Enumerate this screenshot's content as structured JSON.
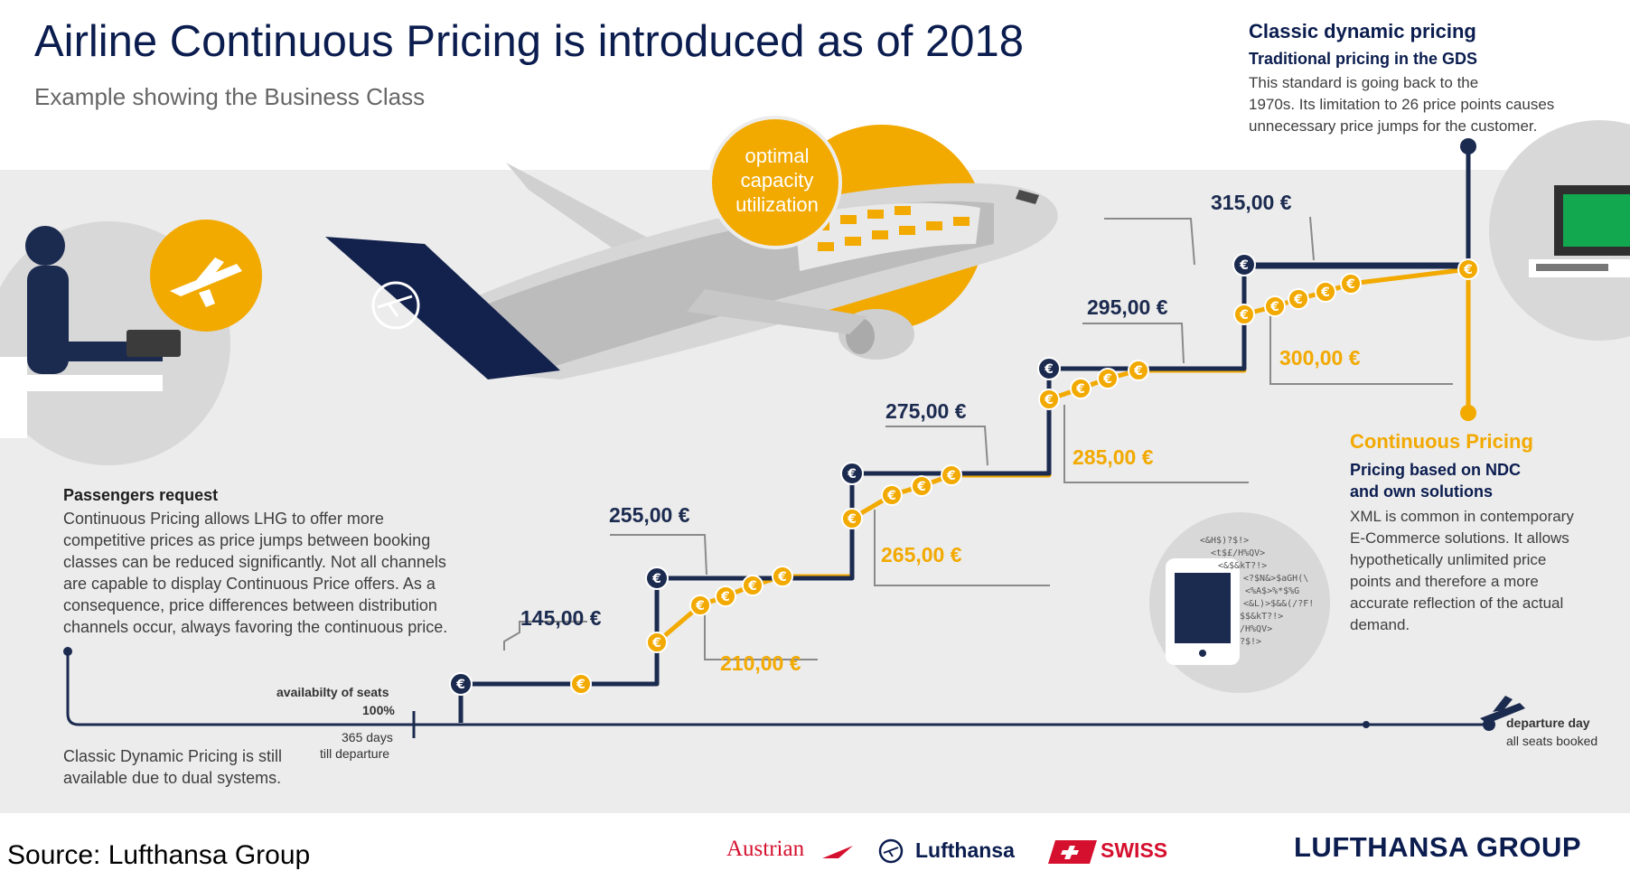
{
  "header": {
    "title": "Airline Continuous Pricing is introduced as of 2018",
    "subtitle": "Example showing the Business Class"
  },
  "classic": {
    "title": "Classic dynamic pricing",
    "subtitle": "Traditional pricing in the GDS",
    "body_line1": "This standard is going back to the",
    "body_line2": "1970s. Its limitation to 26 price points causes",
    "body_line3": "unnecessary price jumps for the customer."
  },
  "continuous": {
    "title": "Continuous Pricing",
    "subtitle_line1": "Pricing based on NDC",
    "subtitle_line2": "and own solutions",
    "body_line1": "XML is common in contemporary",
    "body_line2": "E-Commerce solutions. It allows",
    "body_line3": "hypothetically unlimited price",
    "body_line4": "points and therefore a more",
    "body_line5": "accurate reflection of the actual",
    "body_line6": "demand."
  },
  "passengers": {
    "title": "Passengers request",
    "body_line1": "Continuous Pricing allows LHG to offer more",
    "body_line2": "competitive prices as price jumps between booking",
    "body_line3": "classes can be reduced significantly. Not all channels",
    "body_line4": "are capable to display Continuous Price offers. As a",
    "body_line5": "consequence, price differences between distribution",
    "body_line6": "channels occur, always favoring the continuous price."
  },
  "dual_systems": {
    "line1": "Classic Dynamic Pricing is still",
    "line2": "available due to dual systems."
  },
  "circle_label": {
    "line1": "optimal",
    "line2": "capacity",
    "line3": "utilization"
  },
  "timeline": {
    "availability_line1": "availabilty of seats",
    "availability_line2": "100%",
    "days_line1": "365 days",
    "days_line2": "till departure",
    "departure_line1": "departure day",
    "departure_line2": "all seats booked"
  },
  "code_snippet": {
    "l1": "<&H$)?$!>",
    "l2": "<t$£/H%QV>",
    "l3": "<&$&kT?!>",
    "l4": "<?$N&>$aGH(\\",
    "l5": "<%A$>%*$%G",
    "l6": "<&L)>$&&(/?F!",
    "l7": "$$&kT?!>",
    "l8": "/H%QV>",
    "l9": "?$!>"
  },
  "chart_data": {
    "type": "line",
    "x_label": "",
    "y_unit": "€",
    "classic_prices": [
      "145,00 €",
      "255,00 €",
      "275,00 €",
      "295,00 €",
      "315,00 €"
    ],
    "continuous_prices": [
      "210,00 €",
      "265,00 €",
      "285,00 €",
      "300,00 €"
    ],
    "classic_values": [
      145,
      255,
      275,
      295,
      315
    ],
    "continuous_values": [
      210,
      265,
      285,
      300
    ]
  },
  "footer": {
    "source": "Source: Lufthansa Group",
    "logo_austrian": "Austrian",
    "logo_lufthansa": "Lufthansa",
    "logo_swiss": "SWISS",
    "logo_group": "LUFTHANSA GROUP"
  },
  "colors": {
    "navy": "#1b2a4f",
    "gold": "#f2a900",
    "band": "#ececec"
  },
  "icons": [
    "person-at-laptop-icon",
    "plane-icon",
    "tablet-icon",
    "computer-terminal-icon",
    "euro-coin-icon",
    "departing-plane-icon"
  ]
}
